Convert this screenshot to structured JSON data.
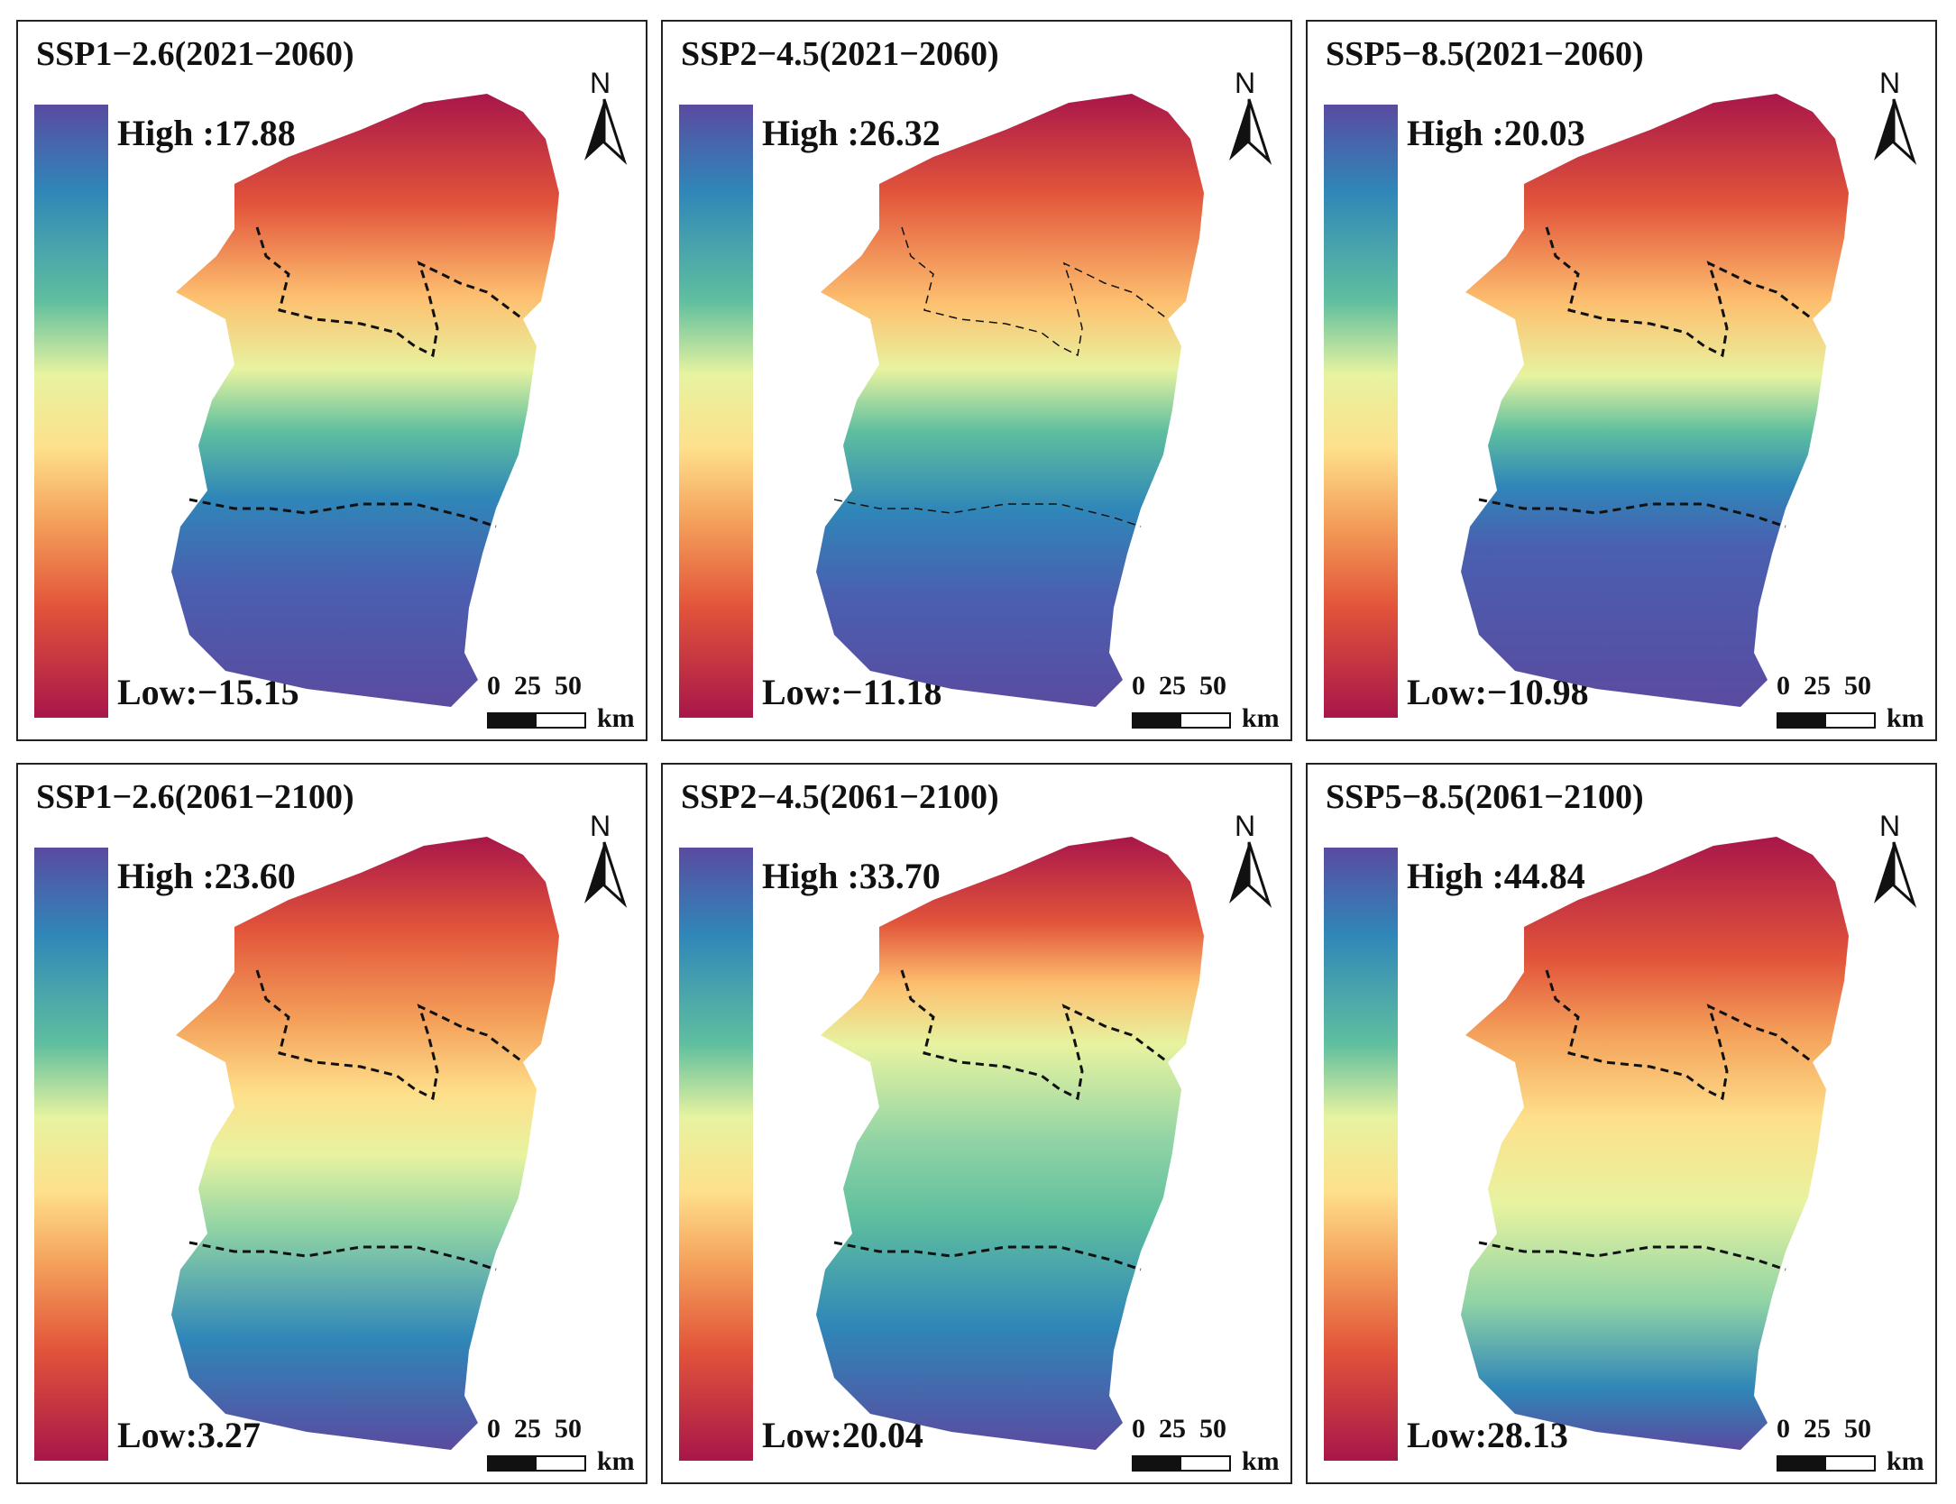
{
  "figure": {
    "panels": [
      {
        "title": "SSP1−2.6(2021−2060)",
        "high": "High :17.88",
        "low": "Low:−15.15"
      },
      {
        "title": "SSP2−4.5(2021−2060)",
        "high": "High :26.32",
        "low": "Low:−11.18"
      },
      {
        "title": "SSP5−8.5(2021−2060)",
        "high": "High :20.03",
        "low": "Low:−10.98"
      },
      {
        "title": "SSP1−2.6(2061−2100)",
        "high": "High :23.60",
        "low": "Low:3.27"
      },
      {
        "title": "SSP2−4.5(2061−2100)",
        "high": "High :33.70",
        "low": "Low:20.04"
      },
      {
        "title": "SSP5−8.5(2061−2100)",
        "high": "High :44.84",
        "low": "Low:28.13"
      }
    ],
    "north_label": "N",
    "scale": {
      "t0": "0",
      "t1": "25",
      "t2": "50",
      "unit": "km"
    }
  },
  "colors": {
    "legend_top": "#5a4ba0",
    "legend_bottom": "#a8164a",
    "boundary": "#111111"
  }
}
